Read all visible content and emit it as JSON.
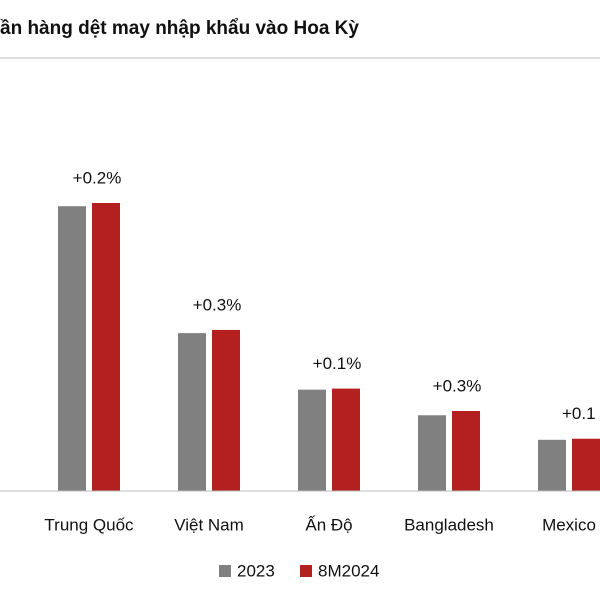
{
  "chart_data": {
    "type": "bar",
    "title": "ần hàng dệt may nhập khẩu vào Hoa Kỳ",
    "categories": [
      "Trung Quốc",
      "Việt Nam",
      "Ấn Độ",
      "Bangladesh",
      "Mexico"
    ],
    "series": [
      {
        "name": "2023",
        "color": "#808080",
        "values": [
          267,
          148,
          95,
          71,
          48
        ]
      },
      {
        "name": "8M2024",
        "color": "#b3201f",
        "values": [
          270,
          151,
          96,
          75,
          49
        ]
      }
    ],
    "annotations": [
      "+0.2%",
      "+0.3%",
      "+0.1%",
      "+0.3%",
      "+0.1"
    ],
    "ylim": [
      0,
      300
    ]
  }
}
